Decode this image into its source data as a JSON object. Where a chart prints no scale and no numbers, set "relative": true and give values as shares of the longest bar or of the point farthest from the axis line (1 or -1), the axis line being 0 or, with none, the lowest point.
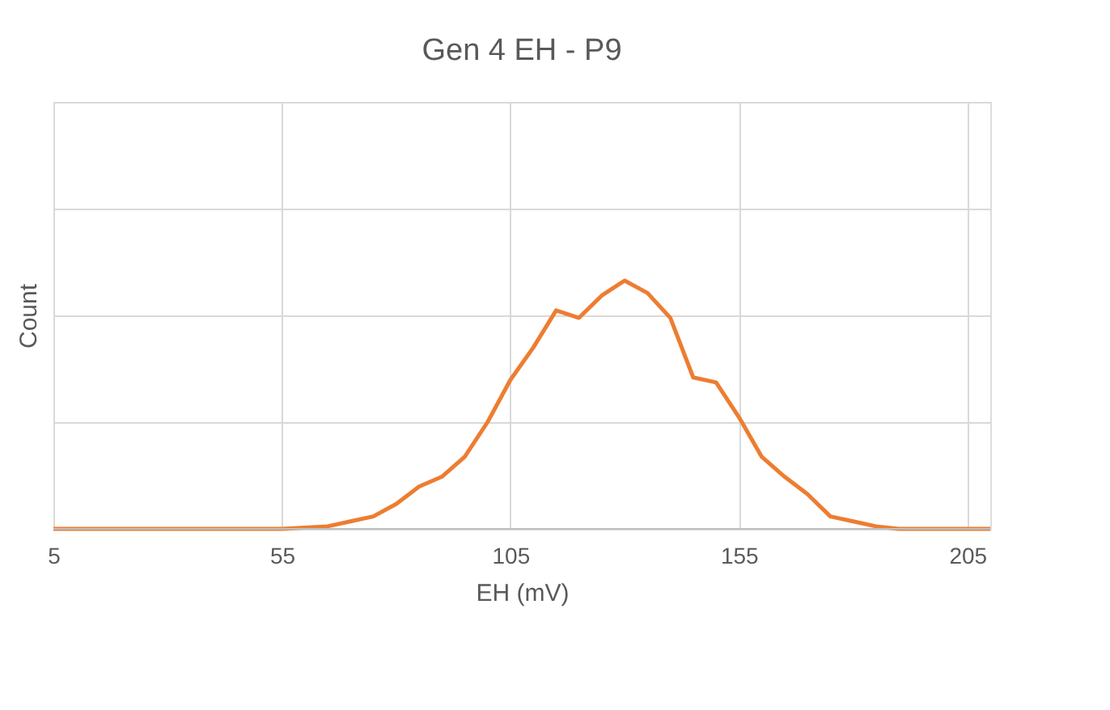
{
  "chart_data": {
    "type": "line",
    "title": "Gen 4 EH - P9",
    "xlabel": "EH (mV)",
    "ylabel": "Count",
    "relative": true,
    "grid": true,
    "x": [
      5,
      10,
      15,
      20,
      25,
      30,
      35,
      40,
      45,
      50,
      55,
      60,
      65,
      70,
      75,
      80,
      85,
      90,
      95,
      100,
      105,
      110,
      115,
      120,
      125,
      130,
      135,
      140,
      145,
      150,
      155,
      160,
      165,
      170,
      175,
      180,
      185,
      190,
      195,
      200,
      205,
      210
    ],
    "xlim": [
      5,
      210
    ],
    "xticks": [
      5,
      55,
      105,
      155,
      205
    ],
    "series": [
      {
        "color": "#ed7d31",
        "values": [
          0,
          0,
          0,
          0,
          0,
          0,
          0,
          0,
          0,
          0,
          0,
          0.005,
          0.01,
          0.03,
          0.05,
          0.1,
          0.17,
          0.21,
          0.29,
          0.43,
          0.6,
          0.73,
          0.88,
          0.85,
          0.94,
          1,
          0.95,
          0.85,
          0.61,
          0.59,
          0.45,
          0.29,
          0.21,
          0.14,
          0.05,
          0.03,
          0.01,
          0,
          0,
          0,
          0,
          0
        ]
      }
    ]
  }
}
